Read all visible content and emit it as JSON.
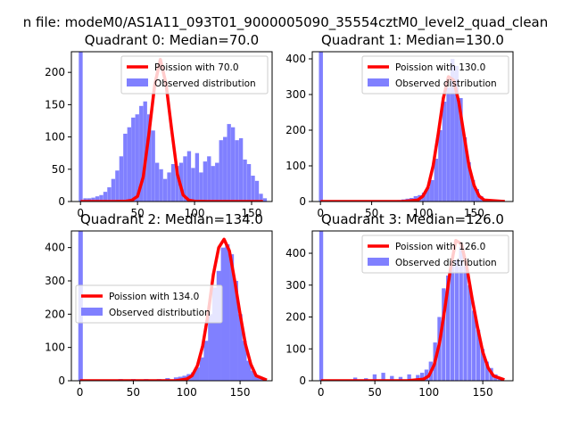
{
  "figure_title": "n file: modeM0/AS1A11_093T01_9000005090_35554cztM0_level2_quad_clean",
  "colors": {
    "poisson": "#ff0000",
    "observed": "#8080ff",
    "axis": "#000000"
  },
  "chart_data": [
    {
      "type": "bar",
      "title": "Quadrant 0: Median=70.0",
      "xlim": [
        -8,
        168
      ],
      "ylim": [
        0,
        232
      ],
      "xticks": [
        0,
        50,
        100,
        150
      ],
      "yticks": [
        0,
        50,
        100,
        150,
        200
      ],
      "legend_loc": "top-right",
      "poisson_label": "Poission with 70.0",
      "observed_label": "Observed distribution",
      "bin_width": 3.4,
      "bin_starts": [
        -1.5,
        2.5,
        6,
        9.5,
        13,
        16.5,
        20,
        23.5,
        27,
        30.5,
        34,
        37.5,
        41,
        44.5,
        48,
        51.5,
        55,
        58.5,
        62,
        65.5,
        69,
        72.5,
        76,
        79.5,
        83,
        86.5,
        90,
        93.5,
        97,
        100.5,
        104,
        107.5,
        111,
        114.5,
        118,
        121.5,
        125,
        128.5,
        132,
        135.5,
        139,
        142.5,
        146,
        149.5,
        153,
        156.5,
        160
      ],
      "counts": [
        232,
        5,
        5,
        6,
        8,
        10,
        15,
        22,
        35,
        48,
        70,
        105,
        115,
        130,
        135,
        148,
        155,
        135,
        110,
        60,
        50,
        35,
        45,
        58,
        55,
        60,
        70,
        78,
        52,
        75,
        45,
        62,
        70,
        55,
        60,
        95,
        100,
        120,
        115,
        95,
        98,
        65,
        58,
        40,
        32,
        12,
        5
      ],
      "poisson_x": [
        0,
        30,
        40,
        45,
        50,
        55,
        60,
        65,
        70,
        75,
        80,
        85,
        90,
        95,
        100,
        110,
        160
      ],
      "poisson_y": [
        0,
        0,
        0.5,
        2,
        8,
        38,
        105,
        180,
        220,
        182,
        110,
        42,
        10,
        2,
        0.5,
        0,
        0
      ]
    },
    {
      "type": "bar",
      "title": "Quadrant 1: Median=130.0",
      "xlim": [
        -8,
        188
      ],
      "ylim": [
        0,
        420
      ],
      "xticks": [
        0,
        50,
        100,
        150
      ],
      "yticks": [
        0,
        100,
        200,
        300,
        400
      ],
      "legend_loc": "top-right",
      "poisson_label": "Poission with 130.0",
      "observed_label": "Observed distribution",
      "bin_width": 3.9,
      "bin_starts": [
        -1.5,
        75,
        79,
        83,
        87,
        91,
        95,
        99,
        103,
        107,
        111,
        115,
        119,
        123,
        127,
        131,
        135,
        139,
        143,
        147,
        151,
        155,
        159
      ],
      "counts": [
        420,
        4,
        6,
        8,
        10,
        15,
        18,
        25,
        40,
        60,
        120,
        200,
        280,
        320,
        400,
        380,
        290,
        180,
        110,
        60,
        35,
        15,
        5
      ],
      "poisson_x": [
        0,
        80,
        95,
        100,
        105,
        110,
        115,
        120,
        125,
        130,
        135,
        140,
        145,
        150,
        155,
        160,
        180
      ],
      "poisson_y": [
        0,
        0,
        4,
        15,
        40,
        100,
        190,
        290,
        350,
        340,
        280,
        190,
        100,
        45,
        15,
        4,
        0
      ]
    },
    {
      "type": "bar",
      "title": "Quadrant 2: Median=134.0",
      "xlim": [
        -8,
        180
      ],
      "ylim": [
        0,
        450
      ],
      "xticks": [
        0,
        50,
        100,
        150
      ],
      "yticks": [
        0,
        100,
        200,
        300,
        400
      ],
      "legend_loc": "center-left",
      "poisson_label": "Poission with 134.0",
      "observed_label": "Observed distribution",
      "bin_width": 4.2,
      "bin_starts": [
        -1.5,
        36,
        48,
        60,
        72,
        80,
        88,
        92,
        96,
        100,
        104,
        108,
        112,
        116,
        120,
        124,
        128,
        132,
        136,
        140,
        144,
        148,
        152,
        156,
        160,
        164,
        168
      ],
      "counts": [
        450,
        5,
        5,
        5,
        5,
        8,
        10,
        12,
        15,
        20,
        25,
        40,
        70,
        120,
        200,
        280,
        330,
        400,
        410,
        380,
        300,
        200,
        120,
        60,
        30,
        12,
        5
      ],
      "poisson_x": [
        0,
        90,
        100,
        105,
        110,
        115,
        120,
        125,
        130,
        135,
        140,
        145,
        150,
        155,
        160,
        165,
        175
      ],
      "poisson_y": [
        0,
        0,
        5,
        15,
        45,
        105,
        200,
        320,
        400,
        425,
        390,
        300,
        200,
        110,
        50,
        15,
        2
      ]
    },
    {
      "type": "bar",
      "title": "Quadrant 3: Median=126.0",
      "xlim": [
        -8,
        178
      ],
      "ylim": [
        0,
        470
      ],
      "xticks": [
        0,
        50,
        100,
        150
      ],
      "yticks": [
        0,
        100,
        200,
        300,
        400
      ],
      "legend_loc": "top-right",
      "poisson_label": "Poission with 126.0",
      "observed_label": "Observed distribution",
      "bin_width": 3.6,
      "bin_starts": [
        -1.5,
        30,
        40,
        48,
        56,
        64,
        72,
        80,
        88,
        92,
        96,
        100,
        104,
        108,
        112,
        116,
        120,
        124,
        128,
        132,
        136,
        140,
        144,
        148,
        152,
        156,
        160,
        164
      ],
      "counts": [
        470,
        10,
        8,
        20,
        25,
        15,
        12,
        20,
        18,
        25,
        35,
        60,
        120,
        200,
        290,
        330,
        360,
        380,
        420,
        360,
        300,
        220,
        160,
        100,
        60,
        40,
        20,
        10
      ],
      "poisson_x": [
        0,
        80,
        95,
        100,
        105,
        110,
        115,
        120,
        125,
        130,
        135,
        140,
        145,
        150,
        155,
        160,
        170
      ],
      "poisson_y": [
        0,
        0,
        5,
        15,
        50,
        120,
        230,
        350,
        440,
        430,
        360,
        260,
        170,
        90,
        40,
        15,
        3
      ]
    }
  ]
}
